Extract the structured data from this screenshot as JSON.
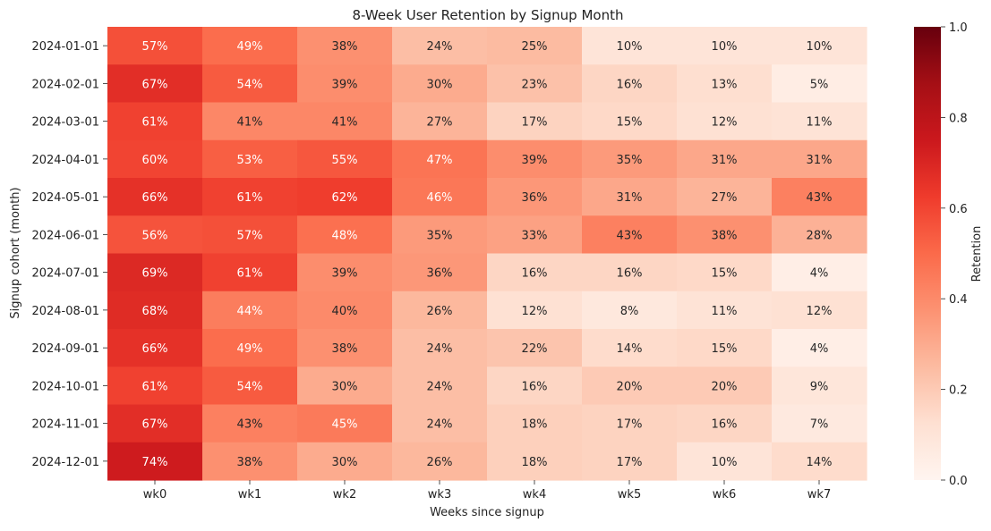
{
  "chart_data": {
    "type": "heatmap",
    "title": "8-Week User Retention by Signup Month",
    "xlabel": "Weeks since signup",
    "ylabel": "Signup cohort (month)",
    "colorbar_label": "Retention",
    "colormap": "Reds",
    "vmin": 0.0,
    "vmax": 1.0,
    "colorbar_ticks": [
      "0.0",
      "0.2",
      "0.4",
      "0.6",
      "0.8",
      "1.0"
    ],
    "x_categories": [
      "wk0",
      "wk1",
      "wk2",
      "wk3",
      "wk4",
      "wk5",
      "wk6",
      "wk7"
    ],
    "y_categories": [
      "2024-01-01",
      "2024-02-01",
      "2024-03-01",
      "2024-04-01",
      "2024-05-01",
      "2024-06-01",
      "2024-07-01",
      "2024-08-01",
      "2024-09-01",
      "2024-10-01",
      "2024-11-01",
      "2024-12-01"
    ],
    "values": [
      [
        0.57,
        0.49,
        0.38,
        0.24,
        0.25,
        0.1,
        0.1,
        0.1
      ],
      [
        0.67,
        0.54,
        0.39,
        0.3,
        0.23,
        0.16,
        0.13,
        0.05
      ],
      [
        0.61,
        0.41,
        0.41,
        0.27,
        0.17,
        0.15,
        0.12,
        0.11
      ],
      [
        0.6,
        0.53,
        0.55,
        0.47,
        0.39,
        0.35,
        0.31,
        0.31
      ],
      [
        0.66,
        0.61,
        0.62,
        0.46,
        0.36,
        0.31,
        0.27,
        0.43
      ],
      [
        0.56,
        0.57,
        0.48,
        0.35,
        0.33,
        0.43,
        0.38,
        0.28
      ],
      [
        0.69,
        0.61,
        0.39,
        0.36,
        0.16,
        0.16,
        0.15,
        0.04
      ],
      [
        0.68,
        0.44,
        0.4,
        0.26,
        0.12,
        0.08,
        0.11,
        0.12
      ],
      [
        0.66,
        0.49,
        0.38,
        0.24,
        0.22,
        0.14,
        0.15,
        0.04
      ],
      [
        0.61,
        0.54,
        0.3,
        0.24,
        0.16,
        0.2,
        0.2,
        0.09
      ],
      [
        0.67,
        0.43,
        0.45,
        0.24,
        0.18,
        0.17,
        0.16,
        0.07
      ],
      [
        0.74,
        0.38,
        0.3,
        0.26,
        0.18,
        0.17,
        0.1,
        0.14
      ]
    ],
    "grid": false,
    "legend": "colorbar-right"
  }
}
